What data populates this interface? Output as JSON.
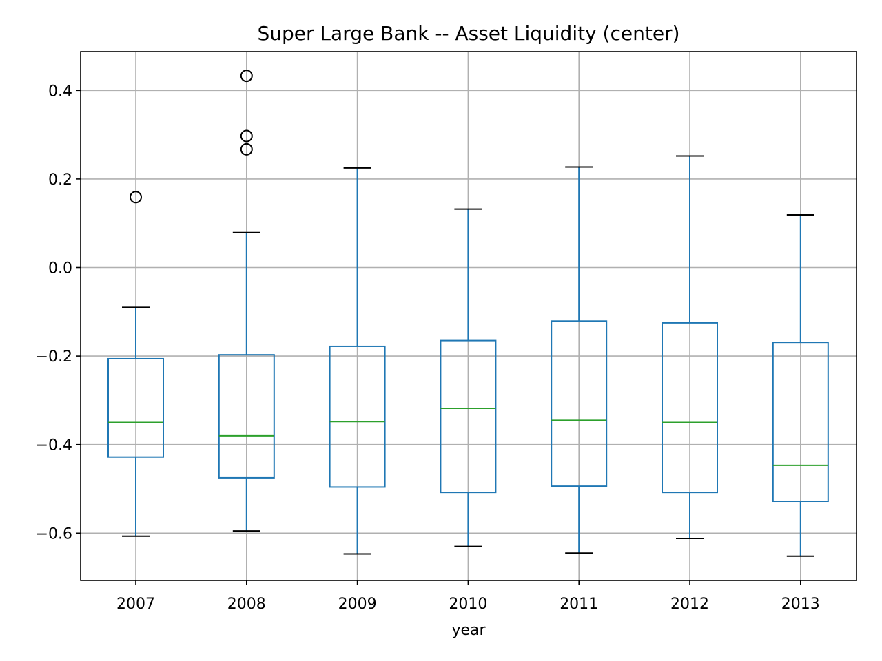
{
  "chart_data": {
    "type": "boxplot",
    "title": "Super Large Bank -- Asset Liquidity (center)",
    "xlabel": "year",
    "ylabel": "",
    "ylim": [
      -0.705,
      0.49
    ],
    "yticks": [
      -0.6,
      -0.4,
      -0.2,
      0.0,
      0.2,
      0.4
    ],
    "ytick_labels": [
      "−0.6",
      "−0.4",
      "−0.2",
      "0.0",
      "0.2",
      "0.4"
    ],
    "grid": true,
    "categories": [
      "2007",
      "2008",
      "2009",
      "2010",
      "2011",
      "2012",
      "2013"
    ],
    "boxes": [
      {
        "category": "2007",
        "whisker_low": -0.607,
        "q1": -0.428,
        "median": -0.35,
        "q3": -0.206,
        "whisker_high": -0.09,
        "fliers": [
          0.159
        ]
      },
      {
        "category": "2008",
        "whisker_low": -0.595,
        "q1": -0.475,
        "median": -0.38,
        "q3": -0.197,
        "whisker_high": 0.079,
        "fliers": [
          0.433,
          0.297,
          0.267
        ]
      },
      {
        "category": "2009",
        "whisker_low": -0.647,
        "q1": -0.496,
        "median": -0.348,
        "q3": -0.178,
        "whisker_high": 0.225,
        "fliers": []
      },
      {
        "category": "2010",
        "whisker_low": -0.63,
        "q1": -0.508,
        "median": -0.318,
        "q3": -0.165,
        "whisker_high": 0.132,
        "fliers": []
      },
      {
        "category": "2011",
        "whisker_low": -0.645,
        "q1": -0.494,
        "median": -0.345,
        "q3": -0.121,
        "whisker_high": 0.227,
        "fliers": []
      },
      {
        "category": "2012",
        "whisker_low": -0.612,
        "q1": -0.508,
        "median": -0.35,
        "q3": -0.125,
        "whisker_high": 0.252,
        "fliers": []
      },
      {
        "category": "2013",
        "whisker_low": -0.652,
        "q1": -0.528,
        "median": -0.447,
        "q3": -0.169,
        "whisker_high": 0.119,
        "fliers": []
      }
    ],
    "colors": {
      "box": "#1f77b4",
      "median": "#2ca02c",
      "cap": "#000000",
      "flier": "#000000",
      "grid": "#b0b0b0"
    }
  }
}
